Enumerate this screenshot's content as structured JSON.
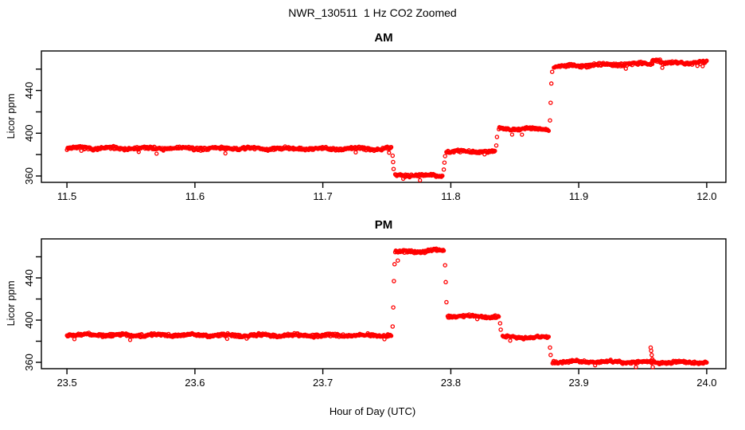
{
  "page": {
    "background": "#FFFFFF",
    "axis_color": "#000000",
    "point_color": "#FF0000"
  },
  "chart_data": {
    "type": "scatter",
    "title": "NWR_130511  1 Hz CO2 Zoomed",
    "xlabel": "Hour of Day (UTC)",
    "ylabel": "Licor ppm",
    "marker": "open-circle",
    "color": "#FF0000",
    "grid": false,
    "legend": false,
    "panels": [
      {
        "title": "AM",
        "ylabel": "Licor ppm",
        "xlim": [
          11.48,
          12.015
        ],
        "ylim": [
          354,
          477
        ],
        "x_ticks": [
          {
            "v": 11.5,
            "label": "11.5"
          },
          {
            "v": 11.6,
            "label": "11.6"
          },
          {
            "v": 11.7,
            "label": "11.7"
          },
          {
            "v": 11.8,
            "label": "11.8"
          },
          {
            "v": 11.9,
            "label": "11.9"
          },
          {
            "v": 12.0,
            "label": "12.0"
          }
        ],
        "y_ticks": [
          {
            "v": 360,
            "label": "360"
          },
          {
            "v": 380,
            "label": ""
          },
          {
            "v": 400,
            "label": "400"
          },
          {
            "v": 420,
            "label": ""
          },
          {
            "v": 440,
            "label": "440"
          },
          {
            "v": 460,
            "label": ""
          }
        ],
        "segments": [
          {
            "t0": 11.5,
            "t1": 11.7535,
            "v0": 386.0,
            "v1": 385.5,
            "noise": 1.6
          },
          {
            "t0": 11.7565,
            "t1": 11.7935,
            "v0": 360.8,
            "v1": 360.3,
            "noise": 1.4
          },
          {
            "t0": 11.7965,
            "t1": 11.8345,
            "v0": 383.0,
            "v1": 382.5,
            "noise": 1.4
          },
          {
            "t0": 11.8375,
            "t1": 11.8765,
            "v0": 404.5,
            "v1": 404.0,
            "noise": 1.4
          },
          {
            "t0": 11.8805,
            "t1": 11.9575,
            "v0": 462.5,
            "v1": 465.5,
            "noise": 1.6
          },
          {
            "t0": 11.9575,
            "t1": 11.9635,
            "v0": 468.5,
            "v1": 468.5,
            "noise": 1.2
          },
          {
            "t0": 11.9635,
            "t1": 12.0,
            "v0": 465.5,
            "v1": 466.5,
            "noise": 1.6
          }
        ],
        "points": [
          [
            11.7545,
            379.0
          ],
          [
            11.7549,
            373.0
          ],
          [
            11.7553,
            366.5
          ],
          [
            11.7945,
            366.0
          ],
          [
            11.795,
            372.5
          ],
          [
            11.7955,
            378.5
          ],
          [
            11.8355,
            388.5
          ],
          [
            11.8361,
            396.5
          ],
          [
            11.8775,
            412.0
          ],
          [
            11.878,
            428.5
          ],
          [
            11.8786,
            446.5
          ],
          [
            11.8792,
            457.5
          ]
        ]
      },
      {
        "title": "PM",
        "ylabel": "Licor ppm",
        "xlim": [
          23.48,
          24.015
        ],
        "ylim": [
          354,
          477
        ],
        "x_ticks": [
          {
            "v": 23.5,
            "label": "23.5"
          },
          {
            "v": 23.6,
            "label": "23.6"
          },
          {
            "v": 23.7,
            "label": "23.7"
          },
          {
            "v": 23.8,
            "label": "23.8"
          },
          {
            "v": 23.9,
            "label": "23.9"
          },
          {
            "v": 24.0,
            "label": "24.0"
          }
        ],
        "y_ticks": [
          {
            "v": 360,
            "label": "360"
          },
          {
            "v": 380,
            "label": ""
          },
          {
            "v": 400,
            "label": "400"
          },
          {
            "v": 420,
            "label": ""
          },
          {
            "v": 440,
            "label": "440"
          },
          {
            "v": 460,
            "label": ""
          }
        ],
        "segments": [
          {
            "t0": 23.5,
            "t1": 23.7535,
            "v0": 386.0,
            "v1": 385.5,
            "noise": 1.6
          },
          {
            "t0": 23.7565,
            "t1": 23.7945,
            "v0": 464.5,
            "v1": 466.0,
            "noise": 1.6
          },
          {
            "t0": 23.7975,
            "t1": 23.8375,
            "v0": 404.0,
            "v1": 403.5,
            "noise": 1.4
          },
          {
            "t0": 23.8405,
            "t1": 23.8765,
            "v0": 384.0,
            "v1": 383.5,
            "noise": 1.4
          },
          {
            "t0": 23.8795,
            "t1": 24.0,
            "v0": 360.8,
            "v1": 359.8,
            "noise": 1.4
          }
        ],
        "points": [
          [
            23.7545,
            394.0
          ],
          [
            23.755,
            412.0
          ],
          [
            23.7555,
            437.0
          ],
          [
            23.756,
            453.0
          ],
          [
            23.7586,
            456.5
          ],
          [
            23.7955,
            452.0
          ],
          [
            23.796,
            436.0
          ],
          [
            23.7966,
            417.0
          ],
          [
            23.8385,
            397.0
          ],
          [
            23.839,
            391.0
          ],
          [
            23.8775,
            374.0
          ],
          [
            23.878,
            367.0
          ],
          [
            23.9562,
            374.0
          ],
          [
            23.9566,
            371.0
          ],
          [
            23.957,
            367.0
          ],
          [
            23.9575,
            363.0
          ],
          [
            23.9578,
            355.5
          ]
        ]
      }
    ]
  }
}
